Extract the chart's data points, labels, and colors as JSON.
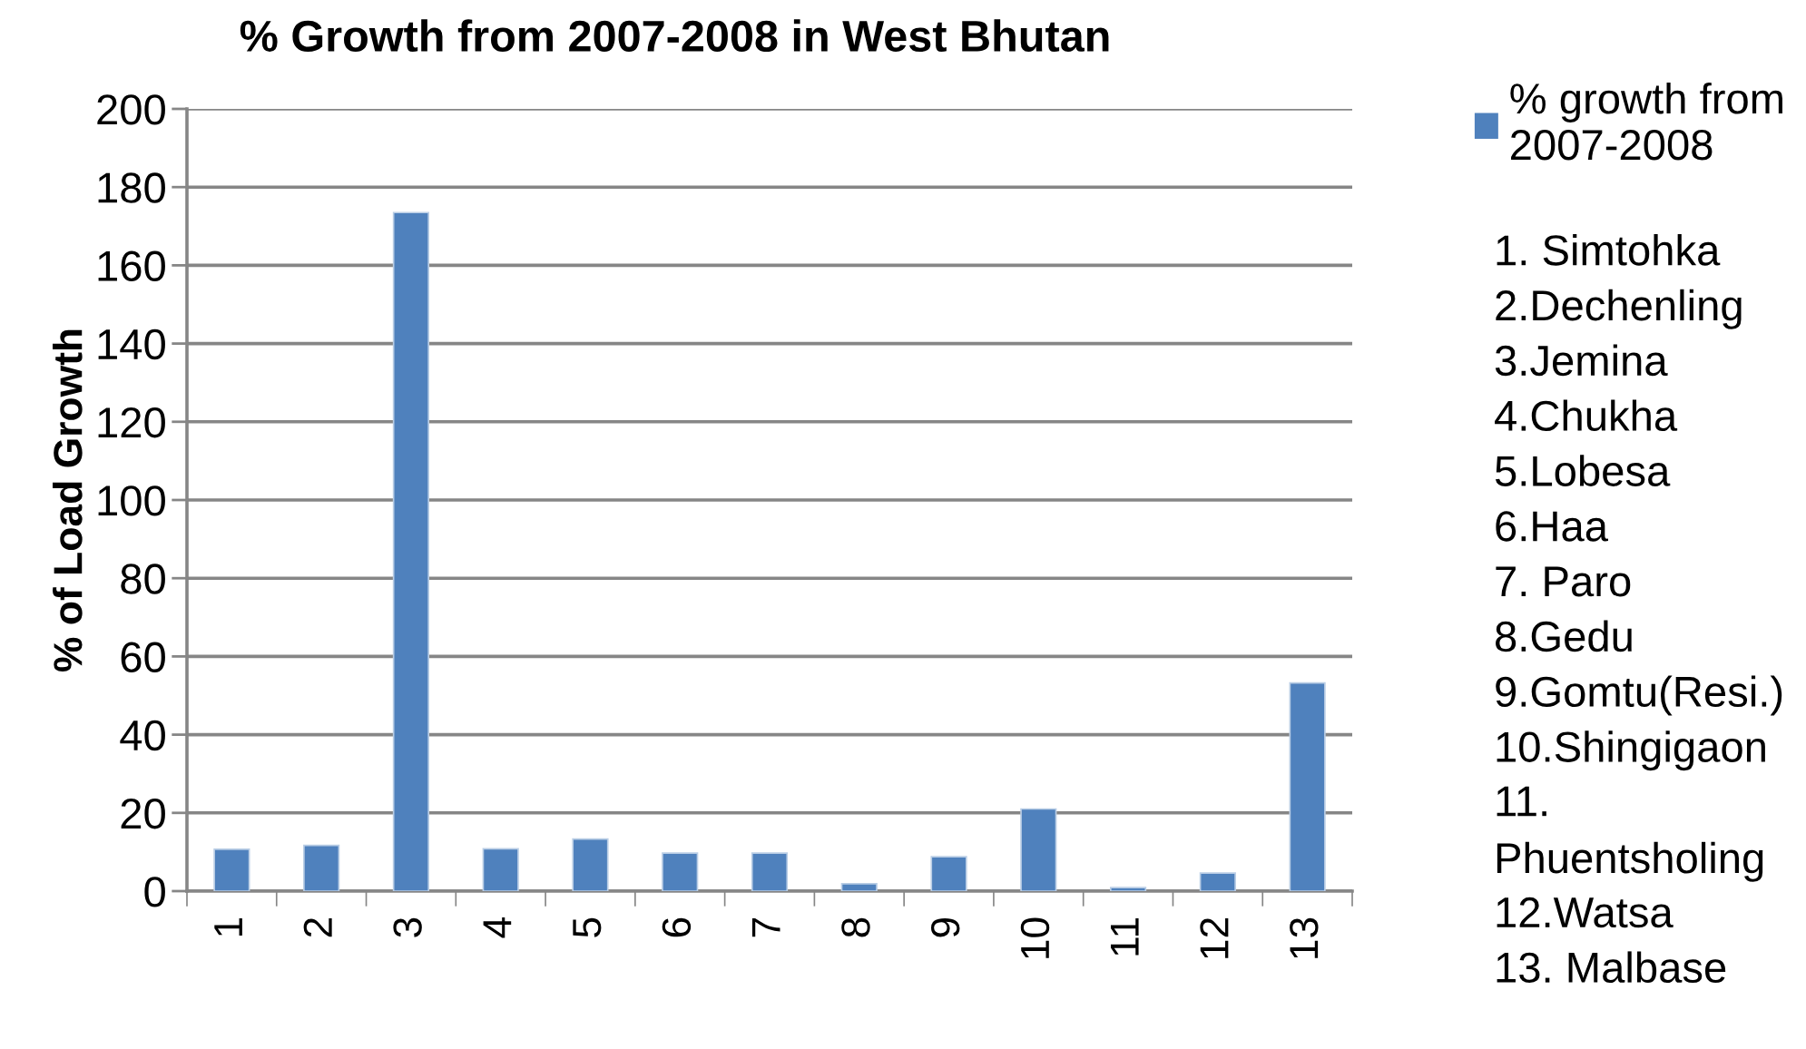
{
  "chart_data": {
    "type": "bar",
    "title": "% Growth from 2007-2008 in West Bhutan",
    "ylabel": "% of Load Growth",
    "categories": [
      "1",
      "2",
      "3",
      "4",
      "5",
      "6",
      "7",
      "8",
      "9",
      "10",
      "11",
      "12",
      "13"
    ],
    "series": [
      {
        "name": "% growth from\n2007-2008",
        "color": "#4f81bd",
        "values": [
          10.7,
          11.7,
          173.5,
          10.8,
          13.3,
          9.7,
          9.7,
          1.9,
          8.8,
          21.0,
          0.9,
          4.6,
          53.2
        ]
      }
    ],
    "ylim": [
      0,
      200
    ],
    "yticks": [
      0,
      20,
      40,
      60,
      80,
      100,
      120,
      140,
      160,
      180,
      200
    ],
    "grid": "y",
    "legend": "right",
    "annotations": [
      "1. Simtohka",
      "2.Dechenling",
      "3.Jemina",
      "4.Chukha",
      "5.Lobesa",
      "6.Haa",
      "7. Paro",
      "8.Gedu",
      "9.Gomtu(Resi.)",
      "10.Shingigaon",
      "11.\nPhuentsholing",
      "12.Watsa",
      "13. Malbase"
    ]
  }
}
